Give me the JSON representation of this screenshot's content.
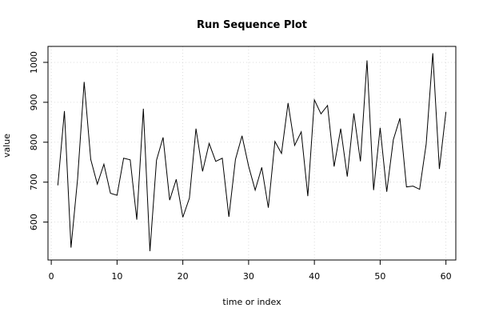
{
  "chart_data": {
    "type": "line",
    "title": "Run Sequence Plot",
    "xlabel": "time or index",
    "ylabel": "value",
    "xlim": [
      -0.5,
      61.5
    ],
    "ylim": [
      505,
      1040
    ],
    "x_ticks": [
      0,
      10,
      20,
      30,
      40,
      50,
      60
    ],
    "y_ticks": [
      600,
      700,
      800,
      900,
      1000
    ],
    "grid": true,
    "series": [
      {
        "x": [
          1,
          2,
          3,
          4,
          5,
          6,
          7,
          8,
          9,
          10,
          11,
          12,
          13,
          14,
          15,
          16,
          17,
          18,
          19,
          20,
          21,
          22,
          23,
          24,
          25,
          26,
          27,
          28,
          29,
          30,
          31,
          32,
          33,
          34,
          35,
          36,
          37,
          38,
          39,
          40,
          41,
          42,
          43,
          44,
          45,
          46,
          47,
          48,
          49,
          50,
          51,
          52,
          53,
          54,
          55,
          56,
          57,
          58,
          59,
          60
        ],
        "values": [
          692,
          878,
          536,
          708,
          951,
          757,
          695,
          745,
          672,
          667,
          760,
          756,
          606,
          884,
          527,
          755,
          812,
          655,
          707,
          612,
          660,
          834,
          727,
          797,
          752,
          760,
          613,
          757,
          816,
          740,
          680,
          737,
          636,
          802,
          772,
          898,
          792,
          826,
          665,
          906,
          871,
          892,
          739,
          834,
          714,
          872,
          752,
          1005,
          680,
          836,
          676,
          806,
          860,
          688,
          690,
          682,
          796,
          1023,
          733,
          876
        ],
        "color": "#000000"
      }
    ]
  }
}
